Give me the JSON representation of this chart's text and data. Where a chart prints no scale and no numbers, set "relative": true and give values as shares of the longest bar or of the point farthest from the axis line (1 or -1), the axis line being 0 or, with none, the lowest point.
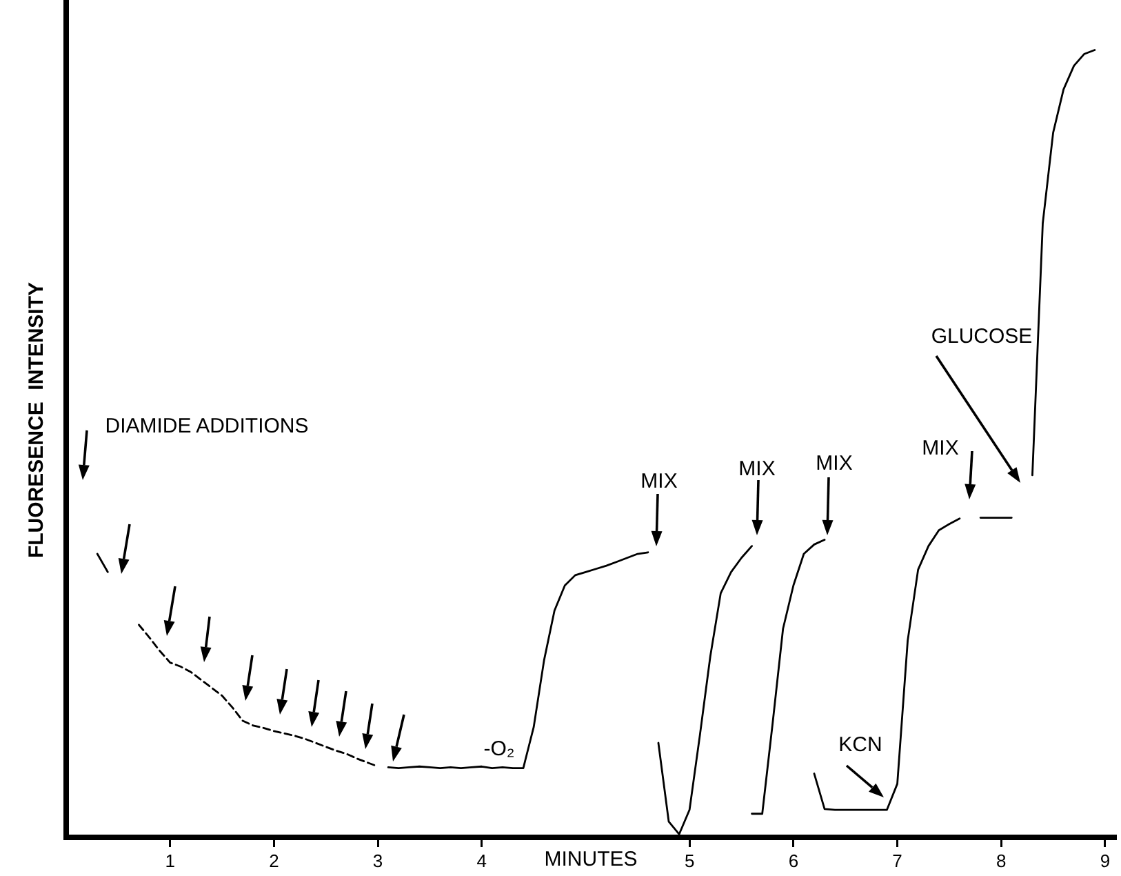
{
  "chart_data": {
    "type": "line",
    "relative": true,
    "xlabel": "MINUTES",
    "ylabel": "FLUORESENCE  INTENSITY",
    "categories": [
      null,
      null,
      null,
      null,
      null,
      null,
      null,
      null,
      null,
      null,
      "1",
      null,
      null,
      null,
      null,
      null,
      null,
      null,
      null,
      null,
      "2",
      null,
      null,
      null,
      null,
      null,
      null,
      null,
      null,
      null,
      "3",
      null,
      null,
      null,
      null,
      null,
      null,
      null,
      null,
      null,
      "4",
      null,
      null,
      null,
      null,
      null,
      null,
      null,
      null,
      null,
      null,
      null,
      null,
      null,
      null,
      null,
      null,
      null,
      null,
      null,
      "5",
      null,
      null,
      null,
      null,
      null,
      null,
      null,
      null,
      null,
      "6",
      null,
      null,
      null,
      null,
      null,
      null,
      null,
      null,
      null,
      "7",
      null,
      null,
      null,
      null,
      null,
      null,
      null,
      null,
      null,
      "8",
      null,
      null,
      null,
      null,
      null,
      null,
      null,
      null,
      null,
      "9",
      null
    ],
    "series": [
      {
        "color": "#000000",
        "values": [
          null,
          null,
          null,
          0.36,
          0.337,
          null,
          null,
          null,
          null,
          null,
          null,
          null,
          null,
          null,
          null,
          null,
          null,
          null,
          null,
          null,
          null,
          null,
          null,
          null,
          null,
          null,
          null,
          null,
          null,
          null,
          null,
          0.089,
          0.088,
          0.089,
          0.09,
          0.089,
          0.088,
          0.089,
          0.088,
          0.089,
          0.09,
          0.088,
          0.089,
          0.088,
          0.088,
          0.14,
          0.225,
          0.288,
          0.32,
          0.333,
          0.337,
          0.341,
          0.345,
          0.35,
          0.355,
          0.36,
          0.362,
          null,
          null,
          null,
          null,
          null,
          null,
          null,
          null,
          null,
          0.03,
          0.03,
          0.145,
          0.265,
          0.32,
          0.36,
          0.372,
          0.378,
          null,
          null,
          null,
          null,
          null,
          null,
          null,
          null,
          null,
          null,
          null,
          null,
          null,
          null,
          0.406,
          0.406,
          0.406,
          0.406,
          null,
          null,
          null,
          null,
          null,
          null,
          null,
          null,
          null,
          null
        ]
      },
      {
        "color": "#000000",
        "line_style": "dashed",
        "values": [
          null,
          null,
          null,
          null,
          null,
          null,
          null,
          0.27,
          0.254,
          0.237,
          0.222,
          0.217,
          0.21,
          0.2,
          0.19,
          0.18,
          0.165,
          0.148,
          0.142,
          0.139,
          0.135,
          0.132,
          0.129,
          0.125,
          0.12,
          0.115,
          0.11,
          0.106,
          0.1,
          0.095,
          0.09,
          null,
          null,
          null,
          null,
          null,
          null,
          null,
          null,
          null,
          null,
          null,
          null,
          null,
          null,
          null,
          null,
          null,
          null,
          null,
          null,
          null,
          null,
          null,
          null,
          null,
          null,
          null,
          null,
          null,
          null,
          null,
          null,
          null,
          null,
          null,
          null,
          null,
          null,
          null,
          null,
          null,
          null,
          null,
          null,
          null,
          null,
          null,
          null,
          null,
          null,
          null,
          null,
          null,
          null,
          null,
          null,
          null,
          null,
          null,
          null,
          null,
          null,
          null,
          null,
          null,
          null,
          null,
          null,
          null,
          null,
          null
        ]
      },
      {
        "color": "#000000",
        "values": [
          null,
          null,
          null,
          null,
          null,
          null,
          null,
          null,
          null,
          null,
          null,
          null,
          null,
          null,
          null,
          null,
          null,
          null,
          null,
          null,
          null,
          null,
          null,
          null,
          null,
          null,
          null,
          null,
          null,
          null,
          null,
          null,
          null,
          null,
          null,
          null,
          null,
          null,
          null,
          null,
          null,
          null,
          null,
          null,
          null,
          null,
          null,
          null,
          null,
          null,
          null,
          null,
          null,
          null,
          null,
          null,
          null,
          0.12,
          0.02,
          0.004,
          0.035,
          0.13,
          0.23,
          0.31,
          0.337,
          0.355,
          0.37,
          null,
          null,
          null,
          null,
          null,
          0.081,
          0.036,
          0.035,
          0.035,
          0.035,
          0.035,
          0.035,
          0.035,
          0.068,
          0.25,
          0.34,
          0.37,
          0.39,
          0.398,
          0.405,
          null,
          null,
          null,
          null,
          null,
          null,
          0.46,
          0.78,
          0.895,
          0.95,
          0.98,
          0.995,
          1.0,
          null,
          null
        ]
      }
    ],
    "marker": "none",
    "line_style": "solid",
    "grid": false,
    "legend": false,
    "annotations": [
      "DIAMIDE ADDITIONS",
      "-O₂",
      "MIX",
      "MIX",
      "MIX",
      "KCN",
      "MIX",
      "GLUCOSE"
    ]
  }
}
